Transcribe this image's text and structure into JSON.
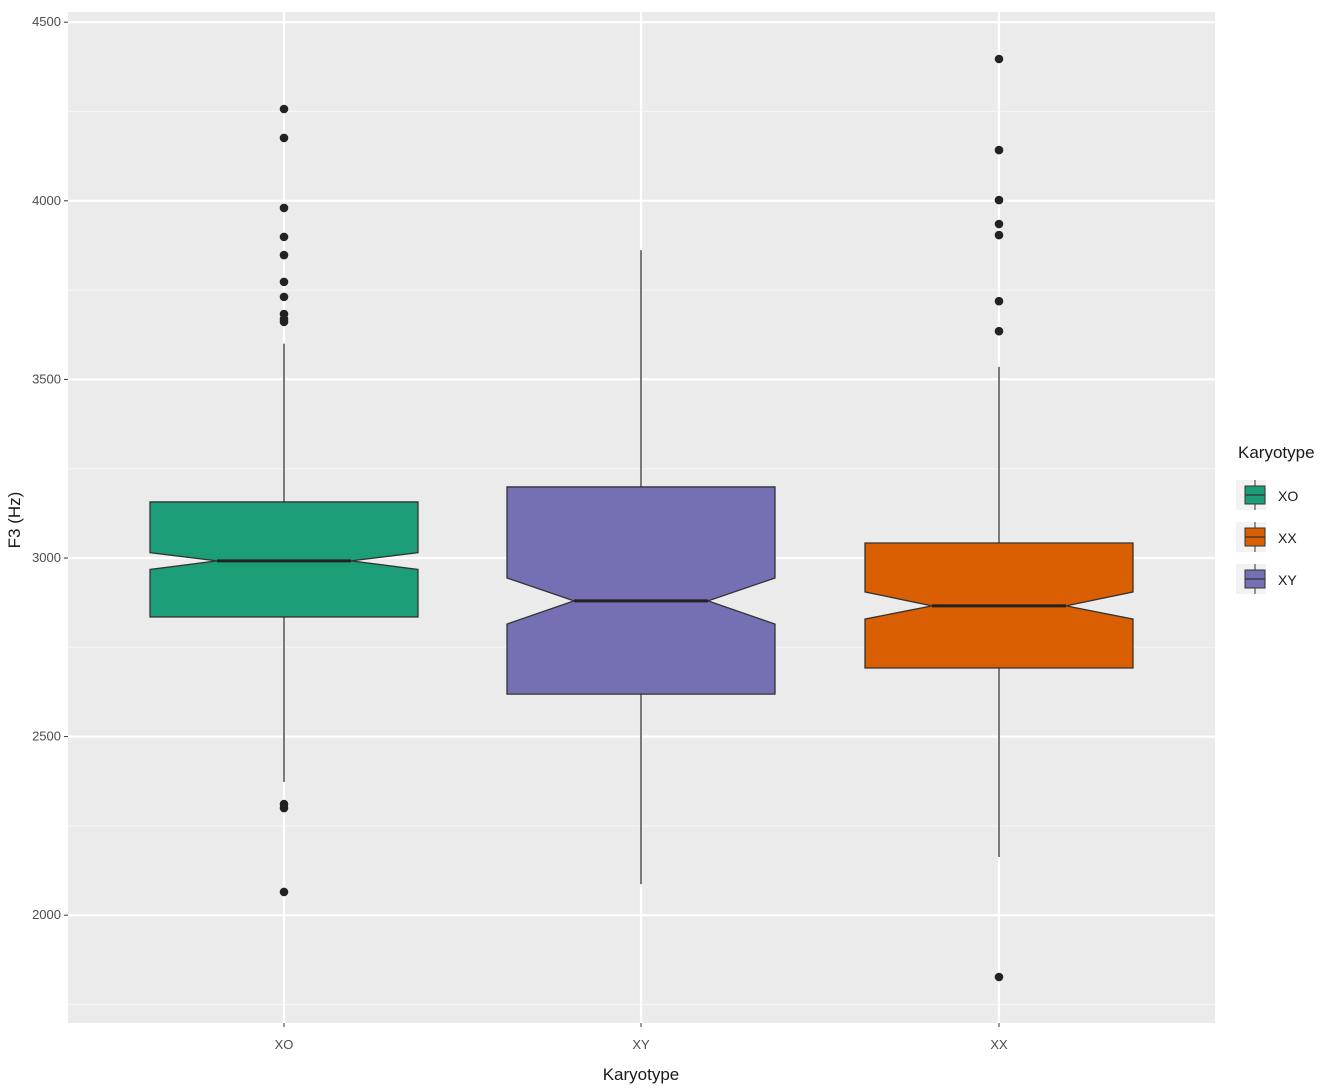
{
  "chart_data": {
    "type": "boxplot",
    "notched": true,
    "title": "",
    "xlabel": "Karyotype",
    "ylabel": "F3 (Hz)",
    "categories": [
      "XO",
      "XY",
      "XX"
    ],
    "ylim": [
      1800,
      4500
    ],
    "yticks": [
      2000,
      2500,
      3000,
      3500,
      4000,
      4500
    ],
    "grid": true,
    "legend": {
      "title": "Karyotype",
      "position": "right",
      "entries": [
        {
          "label": "XO",
          "color": "#1b9e77"
        },
        {
          "label": "XX",
          "color": "#d95f02"
        },
        {
          "label": "XY",
          "color": "#7570b3"
        }
      ]
    },
    "series": [
      {
        "name": "XO",
        "color": "#1b9e77",
        "whisker_low": 2373,
        "q1": 2835,
        "median": 2992,
        "q3": 3157,
        "whisker_high": 3600,
        "notch_low": 2968,
        "notch_high": 3015,
        "outliers": [
          4257,
          4176,
          3980,
          3899,
          3848,
          3773,
          3731,
          3683,
          3669,
          3661,
          2311,
          2300,
          2065
        ]
      },
      {
        "name": "XY",
        "color": "#7570b3",
        "whisker_low": 2087,
        "q1": 2619,
        "median": 2880,
        "q3": 3199,
        "whisker_high": 3862,
        "notch_low": 2815,
        "notch_high": 2944,
        "outliers": []
      },
      {
        "name": "XX",
        "color": "#d95f02",
        "whisker_low": 2163,
        "q1": 2692,
        "median": 2866,
        "q3": 3042,
        "whisker_high": 3535,
        "notch_low": 2829,
        "notch_high": 2905,
        "outliers": [
          4397,
          4142,
          4002,
          3935,
          3904,
          3719,
          3635,
          1827
        ]
      }
    ]
  },
  "colors": {
    "panel_bg": "#ebebeb",
    "grid_major": "#ffffff",
    "box_outline": "#333333",
    "outlier": "#222222"
  }
}
